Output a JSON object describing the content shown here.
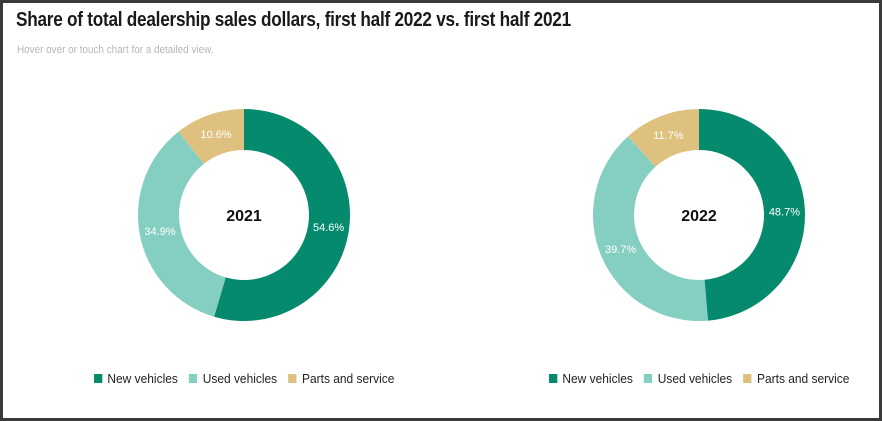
{
  "header": {
    "title": "Share of total dealership sales dollars, first half 2022 vs. first half 2021",
    "subtitle": "Hover over or touch chart for a detailed view."
  },
  "colors": {
    "new_vehicles": "#058a6e",
    "used_vehicles": "#84cfc1",
    "parts_and_service": "#dfc17f"
  },
  "chart_data": [
    {
      "type": "pie",
      "center_label": "2021",
      "categories": [
        "New vehicles",
        "Used vehicles",
        "Parts and service"
      ],
      "values": [
        54.6,
        34.9,
        10.6
      ],
      "value_labels": [
        "54.6%",
        "34.9%",
        "10.6%"
      ],
      "colors": [
        "#058a6e",
        "#84cfc1",
        "#dfc17f"
      ],
      "donut": true,
      "legend": [
        "New vehicles",
        "Used vehicles",
        "Parts and service"
      ],
      "legend_position": "bottom"
    },
    {
      "type": "pie",
      "center_label": "2022",
      "categories": [
        "New vehicles",
        "Used vehicles",
        "Parts and service"
      ],
      "values": [
        48.7,
        39.7,
        11.7
      ],
      "value_labels": [
        "48.7%",
        "39.7%",
        "11.7%"
      ],
      "colors": [
        "#058a6e",
        "#84cfc1",
        "#dfc17f"
      ],
      "donut": true,
      "legend": [
        "New vehicles",
        "Used vehicles",
        "Parts and service"
      ],
      "legend_position": "bottom"
    }
  ]
}
